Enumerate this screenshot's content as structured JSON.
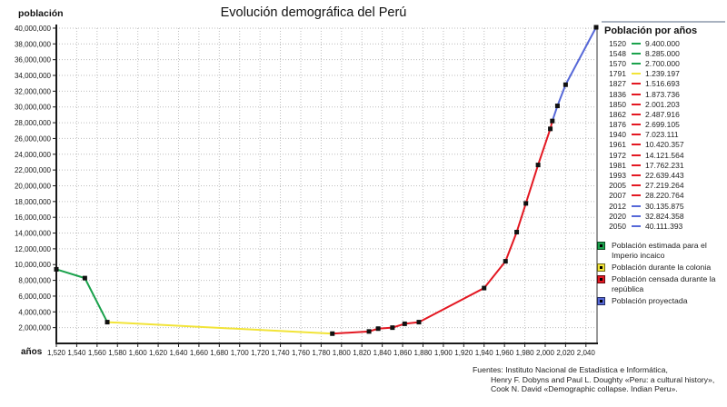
{
  "title": "Evolución demográfica del Perú",
  "y_axis_title": "población",
  "x_axis_title": "años",
  "colors": {
    "green": "#1aa24c",
    "yellow": "#f2e438",
    "red": "#e31822",
    "blue": "#5668d8",
    "marker": "#111111",
    "grid": "#bdbdbd",
    "axis": "#1a1a1a",
    "right_border": "#999999",
    "divider": "#a9b2c0"
  },
  "side_panel": {
    "header": "Población por años",
    "rows": [
      {
        "year": "1520",
        "value": "9.400.000",
        "color_key": "green"
      },
      {
        "year": "1548",
        "value": "8.285.000",
        "color_key": "green"
      },
      {
        "year": "1570",
        "value": "2.700.000",
        "color_key": "green"
      },
      {
        "year": "1791",
        "value": "1.239.197",
        "color_key": "yellow"
      },
      {
        "year": "1827",
        "value": "1.516.693",
        "color_key": "red"
      },
      {
        "year": "1836",
        "value": "1.873.736",
        "color_key": "red"
      },
      {
        "year": "1850",
        "value": "2.001.203",
        "color_key": "red"
      },
      {
        "year": "1862",
        "value": "2.487.916",
        "color_key": "red"
      },
      {
        "year": "1876",
        "value": "2.699.105",
        "color_key": "red"
      },
      {
        "year": "1940",
        "value": "7.023.111",
        "color_key": "red"
      },
      {
        "year": "1961",
        "value": "10.420.357",
        "color_key": "red"
      },
      {
        "year": "1972",
        "value": "14.121.564",
        "color_key": "red"
      },
      {
        "year": "1981",
        "value": "17.762.231",
        "color_key": "red"
      },
      {
        "year": "1993",
        "value": "22.639.443",
        "color_key": "red"
      },
      {
        "year": "2005",
        "value": "27.219.264",
        "color_key": "red"
      },
      {
        "year": "2007",
        "value": "28.220.764",
        "color_key": "red"
      },
      {
        "year": "2012",
        "value": "30.135.875",
        "color_key": "blue"
      },
      {
        "year": "2020",
        "value": "32.824.358",
        "color_key": "blue"
      },
      {
        "year": "2050",
        "value": "40.111.393",
        "color_key": "blue"
      }
    ]
  },
  "legend": [
    {
      "label": "Población estimada para el Imperio incaico",
      "color_key": "green"
    },
    {
      "label": "Población durante la colonia",
      "color_key": "yellow"
    },
    {
      "label": "Población censada durante la república",
      "color_key": "red"
    },
    {
      "label": "Población proyectada",
      "color_key": "blue"
    }
  ],
  "sources": {
    "lines": [
      "Fuentes: Instituto Nacional de Estadística e Informática,",
      "Henry F. Dobyns and Paul L. Doughty «Peru: a cultural history»,",
      "Cook N. David «Demographic collapse. Indian Peru»."
    ]
  },
  "chart_data": {
    "type": "line",
    "title": "Evolución demográfica del Perú",
    "xlabel": "años",
    "ylabel": "población",
    "xlim": [
      1520,
      2050
    ],
    "ylim": [
      0,
      40000000
    ],
    "x_tick_min": 1520,
    "x_tick_max": 2040,
    "x_tick_step": 20,
    "y_tick_min": 2000000,
    "y_tick_max": 40000000,
    "y_tick_step": 2000000,
    "grid": true,
    "legend_position": "right",
    "series": [
      {
        "name": "Población estimada para el Imperio incaico",
        "color_key": "green",
        "points": [
          [
            1520,
            9400000
          ],
          [
            1548,
            8285000
          ],
          [
            1570,
            2700000
          ]
        ]
      },
      {
        "name": "Población durante la colonia",
        "color_key": "yellow",
        "points": [
          [
            1570,
            2700000
          ],
          [
            1791,
            1239197
          ]
        ]
      },
      {
        "name": "Población censada durante la república",
        "color_key": "red",
        "points": [
          [
            1791,
            1239197
          ],
          [
            1827,
            1516693
          ],
          [
            1836,
            1873736
          ],
          [
            1850,
            2001203
          ],
          [
            1862,
            2487916
          ],
          [
            1876,
            2699105
          ],
          [
            1940,
            7023111
          ],
          [
            1961,
            10420357
          ],
          [
            1972,
            14121564
          ],
          [
            1981,
            17762231
          ],
          [
            1993,
            22639443
          ],
          [
            2005,
            27219264
          ],
          [
            2007,
            28220764
          ]
        ]
      },
      {
        "name": "Población proyectada",
        "color_key": "blue",
        "points": [
          [
            2007,
            28220764
          ],
          [
            2012,
            30135875
          ],
          [
            2020,
            32824358
          ],
          [
            2050,
            40111393
          ]
        ]
      }
    ]
  }
}
